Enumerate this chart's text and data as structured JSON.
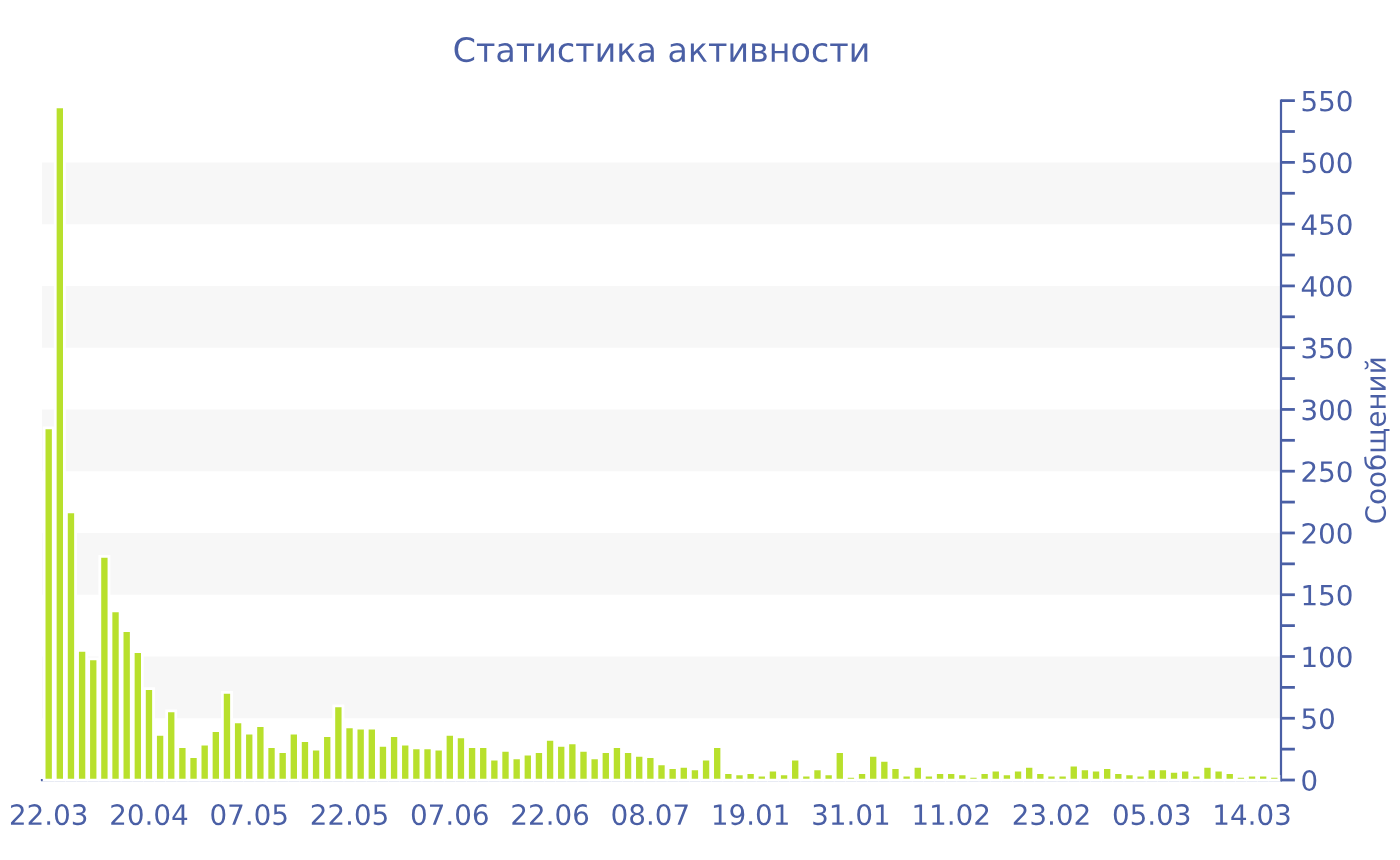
{
  "chart_data": {
    "type": "bar",
    "title": "Статистика активности",
    "ylabel": "Сообщений",
    "categories": [
      "22.03",
      null,
      null,
      null,
      null,
      null,
      null,
      null,
      null,
      "20.04",
      null,
      null,
      null,
      null,
      null,
      null,
      null,
      null,
      "07.05",
      null,
      null,
      null,
      null,
      null,
      null,
      null,
      null,
      "22.05",
      null,
      null,
      null,
      null,
      null,
      null,
      null,
      null,
      "07.06",
      null,
      null,
      null,
      null,
      null,
      null,
      null,
      null,
      "22.06",
      null,
      null,
      null,
      null,
      null,
      null,
      null,
      null,
      "08.07",
      null,
      null,
      null,
      null,
      null,
      null,
      null,
      null,
      "19.01",
      null,
      null,
      null,
      null,
      null,
      null,
      null,
      null,
      "31.01",
      null,
      null,
      null,
      null,
      null,
      null,
      null,
      null,
      "11.02",
      null,
      null,
      null,
      null,
      null,
      null,
      null,
      null,
      "23.02",
      null,
      null,
      null,
      null,
      null,
      null,
      null,
      null,
      "05.03",
      null,
      null,
      null,
      null,
      null,
      null,
      null,
      null,
      "14.03",
      null,
      null
    ],
    "values": [
      285,
      545,
      217,
      105,
      98,
      181,
      137,
      121,
      104,
      74,
      37,
      56,
      27,
      19,
      29,
      40,
      71,
      47,
      38,
      44,
      27,
      23,
      38,
      32,
      25,
      36,
      60,
      43,
      42,
      42,
      28,
      36,
      29,
      26,
      26,
      25,
      37,
      35,
      27,
      27,
      17,
      24,
      18,
      21,
      23,
      33,
      28,
      30,
      24,
      18,
      23,
      27,
      23,
      20,
      19,
      13,
      10,
      11,
      9,
      17,
      27,
      6,
      5,
      6,
      4,
      8,
      5,
      17,
      4,
      9,
      5,
      23,
      3,
      6,
      20,
      16,
      10,
      4,
      11,
      4,
      6,
      6,
      5,
      3,
      6,
      8,
      5,
      8,
      11,
      6,
      4,
      4,
      12,
      9,
      8,
      10,
      6,
      5,
      4,
      9,
      9,
      7,
      8,
      4,
      11,
      8,
      6,
      3,
      4,
      4,
      3
    ],
    "color": "#b8e02c",
    "ylim": [
      0,
      550
    ],
    "yticks": [
      0,
      {
        "value": 25,
        "label": null
      },
      50,
      {
        "value": 75,
        "label": null
      },
      100,
      {
        "value": 125,
        "label": null
      },
      150,
      {
        "value": 175,
        "label": null
      },
      200,
      {
        "value": 225,
        "label": null
      },
      250,
      {
        "value": 275,
        "label": null
      },
      300,
      {
        "value": 325,
        "label": null
      },
      350,
      {
        "value": 375,
        "label": null
      },
      400,
      {
        "value": 425,
        "label": null
      },
      450,
      {
        "value": 475,
        "label": null
      },
      500,
      {
        "value": 525,
        "label": null
      },
      550
    ],
    "bands": [
      {
        "axis": "y",
        "from": 50,
        "to": 100,
        "color": "#f7f7f7"
      },
      {
        "axis": "y",
        "from": 150,
        "to": 200,
        "color": "#f7f7f7"
      },
      {
        "axis": "y",
        "from": 250,
        "to": 300,
        "color": "#f7f7f7"
      },
      {
        "axis": "y",
        "from": 350,
        "to": 400,
        "color": "#f7f7f7"
      },
      {
        "axis": "y",
        "from": 450,
        "to": 500,
        "color": "#f7f7f7"
      }
    ],
    "grid": false,
    "legend": false
  }
}
